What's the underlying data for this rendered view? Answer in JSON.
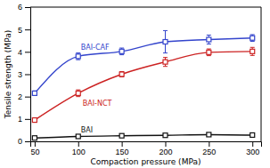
{
  "chart_data": {
    "type": "line",
    "xlabel": "Compaction pressure (MPa)",
    "ylabel": "Tensile strength (MPa)",
    "x": [
      50,
      100,
      150,
      200,
      250,
      300
    ],
    "xlim": [
      45,
      310
    ],
    "xticks": [
      50,
      100,
      150,
      200,
      250,
      300
    ],
    "ylim": [
      0,
      6
    ],
    "yticks": [
      0,
      1,
      2,
      3,
      4,
      5,
      6
    ],
    "marker": "square",
    "series": [
      {
        "name": "BAI-CAF",
        "color": "#3344cc",
        "values": [
          2.15,
          3.8,
          4.02,
          4.45,
          4.55,
          4.62
        ],
        "errors": [
          0.1,
          0.15,
          0.15,
          0.5,
          0.2,
          0.15
        ]
      },
      {
        "name": "BAI-NCT",
        "color": "#cc2222",
        "values": [
          0.95,
          2.15,
          3.0,
          3.55,
          3.98,
          4.02
        ],
        "errors": [
          0.05,
          0.15,
          0.12,
          0.2,
          0.15,
          0.18
        ]
      },
      {
        "name": "BAI",
        "color": "#111111",
        "values": [
          0.15,
          0.22,
          0.25,
          0.27,
          0.3,
          0.28
        ],
        "errors": [
          0.03,
          0.02,
          0.02,
          0.02,
          0.02,
          0.02
        ]
      }
    ]
  }
}
